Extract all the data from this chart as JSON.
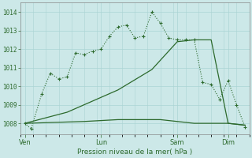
{
  "title": "Pression niveau de la mer( hPa )",
  "background_color": "#cce8e8",
  "grid_color": "#aad4d4",
  "line_color": "#2d6a2d",
  "ylim": [
    1007.4,
    1014.5
  ],
  "yticks": [
    1008,
    1009,
    1010,
    1011,
    1012,
    1013,
    1014
  ],
  "xtick_labels": [
    "Ven",
    "Lun",
    "Sam",
    "Dim"
  ],
  "xtick_positions": [
    2,
    38,
    74,
    98
  ],
  "xlim": [
    0,
    108
  ],
  "series1_x": [
    2,
    5,
    10,
    14,
    18,
    22,
    26,
    30,
    34,
    38,
    42,
    46,
    50,
    54,
    58,
    62,
    66,
    70,
    74,
    78,
    82,
    86,
    90,
    94,
    98,
    102,
    106
  ],
  "series1_y": [
    1008.0,
    1007.7,
    1009.6,
    1010.7,
    1010.4,
    1010.5,
    1011.8,
    1011.7,
    1011.9,
    1012.0,
    1012.7,
    1013.2,
    1013.3,
    1012.6,
    1012.7,
    1014.0,
    1013.4,
    1012.6,
    1012.5,
    1012.5,
    1012.5,
    1010.2,
    1010.1,
    1009.3,
    1010.3,
    1009.0,
    1007.8
  ],
  "series2_x": [
    2,
    22,
    46,
    62,
    74,
    82,
    90,
    98,
    106
  ],
  "series2_y": [
    1008.0,
    1008.6,
    1009.8,
    1010.9,
    1012.4,
    1012.5,
    1012.5,
    1008.0,
    1007.9
  ],
  "series3_x": [
    2,
    30,
    46,
    58,
    66,
    74,
    82,
    90,
    94,
    98,
    106
  ],
  "series3_y": [
    1008.0,
    1008.1,
    1008.2,
    1008.2,
    1008.2,
    1008.1,
    1008.0,
    1008.0,
    1008.0,
    1008.0,
    1007.9
  ]
}
